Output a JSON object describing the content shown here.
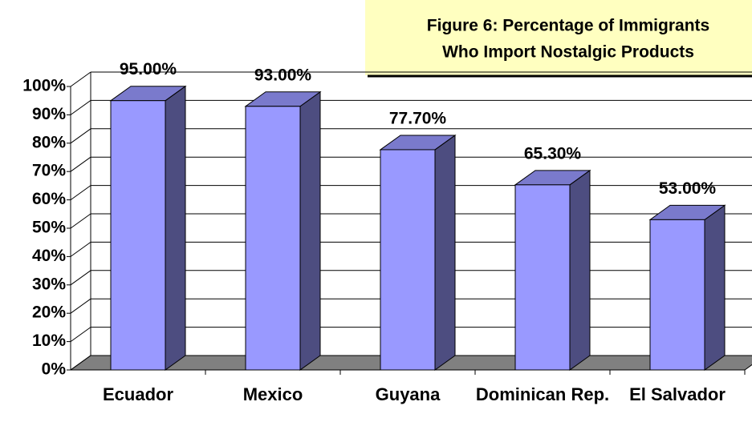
{
  "chart_data": {
    "type": "bar3d",
    "title": [
      "Figure 6: Percentage of Immigrants",
      "Who Import Nostalgic Products"
    ],
    "categories": [
      "Ecuador",
      "Mexico",
      "Guyana",
      "Dominican Rep.",
      "El Salvador"
    ],
    "values": [
      95,
      93,
      77.7,
      65.3,
      53
    ],
    "value_labels": [
      "95.00%",
      "93.00%",
      "77.70%",
      "65.30%",
      "53.00%"
    ],
    "color": "#9999ff",
    "ylim": [
      0,
      100
    ],
    "yticks": [
      {
        "value": 0,
        "label": "0%"
      },
      {
        "value": 10,
        "label": "10%"
      },
      {
        "value": 20,
        "label": "20%"
      },
      {
        "value": 30,
        "label": "30%"
      },
      {
        "value": 40,
        "label": "40%"
      },
      {
        "value": 50,
        "label": "50%"
      },
      {
        "value": 60,
        "label": "60%"
      },
      {
        "value": 70,
        "label": "70%"
      },
      {
        "value": 80,
        "label": "80%"
      },
      {
        "value": 90,
        "label": "90%"
      },
      {
        "value": 100,
        "label": "100%"
      }
    ],
    "grid": true
  }
}
